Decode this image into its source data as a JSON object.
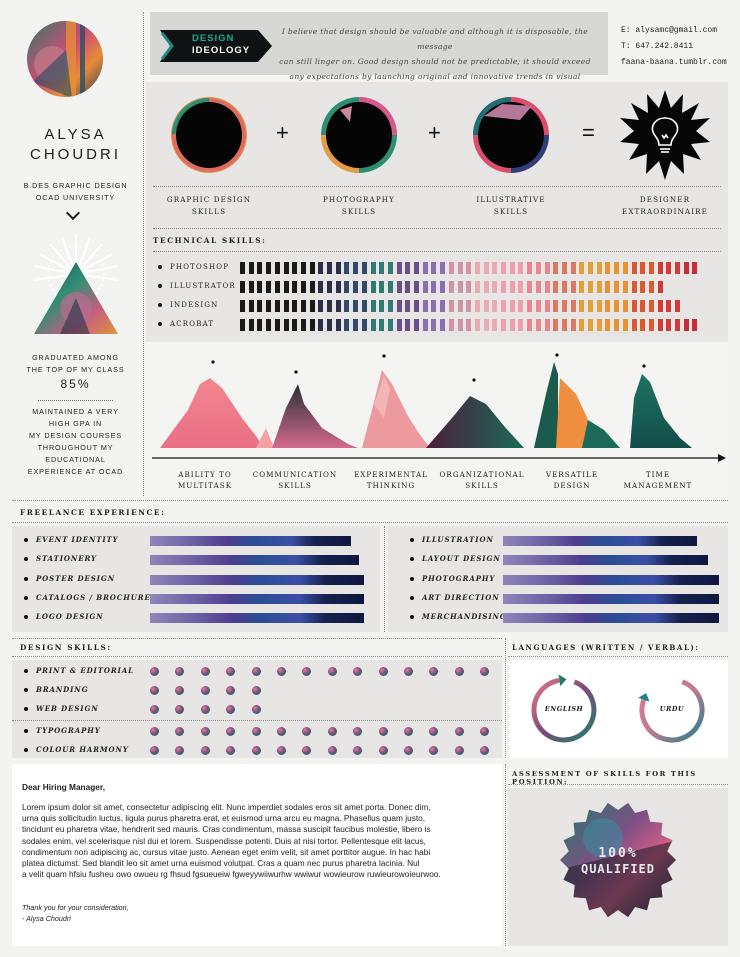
{
  "profile": {
    "first_name": "ALYSA",
    "last_name": "CHOUDRI",
    "degree_line1": "B.DES GRAPHIC DESIGN",
    "degree_line2": "OCAD UNIVERSITY",
    "graduated_line1": "GRADUATED AMONG",
    "graduated_line2": "THE TOP OF MY CLASS",
    "graduated_pct": "85%",
    "gpa_lines": [
      "MAINTAINED A VERY",
      "HIGH GPA IN",
      "MY DESIGN COURSES",
      "THROUGHOUT MY",
      "EDUCATIONAL",
      "EXPERIENCE AT OCAD"
    ]
  },
  "ideology": {
    "banner_line1": "DESIGN",
    "banner_line2": "IDEOLOGY",
    "quote_lines": [
      "I believe that design should be valuable and although it is disposable, the message",
      "can still linger on. Good design should not be predictable; it should exceed",
      "any expectations by launching original and innovative trends in visual dialogue."
    ]
  },
  "contact": {
    "email": "E: alysamc@gmail.com",
    "phone": "T: 647.242.8411",
    "site": "faana-baana.tumblr.com"
  },
  "equation": {
    "items": [
      {
        "line1": "GRAPHIC DESIGN",
        "line2": "SKILLS"
      },
      {
        "line1": "PHOTOGRAPHY",
        "line2": "SKILLS"
      },
      {
        "line1": "ILLUSTRATIVE",
        "line2": "SKILLS"
      },
      {
        "line1": "DESIGNER",
        "line2": "EXTRAORDINAIRE"
      }
    ],
    "plus": "+",
    "equals": "="
  },
  "technical": {
    "title": "TECHNICAL SKILLS:",
    "skills": [
      {
        "name": "PHOTOSHOP",
        "level": 0.98
      },
      {
        "name": "ILLUSTRATOR",
        "level": 0.91
      },
      {
        "name": "INDESIGN",
        "level": 0.95
      },
      {
        "name": "ACROBAT",
        "level": 0.98
      }
    ]
  },
  "peaks": {
    "labels": [
      {
        "line1": "ABILITY TO",
        "line2": "MULTITASK"
      },
      {
        "line1": "COMMUNICATION",
        "line2": "SKILLS"
      },
      {
        "line1": "EXPERIMENTAL",
        "line2": "THINKING"
      },
      {
        "line1": "ORGANIZATIONAL",
        "line2": "SKILLS"
      },
      {
        "line1": "VERSATILE",
        "line2": "DESIGN"
      },
      {
        "line1": "TIME",
        "line2": "MANAGEMENT"
      }
    ]
  },
  "freelance": {
    "title": "FREELANCE EXPERIENCE:",
    "left": [
      {
        "name": "EVENT IDENTITY",
        "level": 0.92
      },
      {
        "name": "STATIONERY",
        "level": 0.96
      },
      {
        "name": "POSTER DESIGN",
        "level": 0.98
      },
      {
        "name": "CATALOGS / BROCHURES",
        "level": 0.98
      },
      {
        "name": "LOGO DESIGN",
        "level": 0.98
      }
    ],
    "right": [
      {
        "name": "ILLUSTRATION",
        "level": 0.89
      },
      {
        "name": "LAYOUT DESIGN",
        "level": 0.94
      },
      {
        "name": "PHOTOGRAPHY",
        "level": 0.99
      },
      {
        "name": "ART DIRECTION",
        "level": 0.99
      },
      {
        "name": "MERCHANDISING",
        "level": 0.99
      }
    ]
  },
  "design_skills": {
    "title": "DESIGN SKILLS:",
    "skills": [
      {
        "name": "PRINT & EDITORIAL",
        "dots": 14
      },
      {
        "name": "BRANDING",
        "dots": 5
      },
      {
        "name": "WEB DESIGN",
        "dots": 5
      },
      {
        "name": "TYPOGRAPHY",
        "dots": 14
      },
      {
        "name": "COLOUR HARMONY",
        "dots": 14
      }
    ]
  },
  "languages": {
    "title": "LANGUAGES (WRITTEN / VERBAL):",
    "items": [
      {
        "name": "ENGLISH",
        "level": 0.92
      },
      {
        "name": "URDU",
        "level": 0.75
      }
    ]
  },
  "assessment": {
    "title": "ASSESSMENT OF SKILLS FOR THIS POSITION:",
    "line1": "100%",
    "line2": "QUALIFIED"
  },
  "letter": {
    "greeting": "Dear Hiring Manager,",
    "body_lines": [
      "Lorem ipsum dolor sit amet, consectetur adipiscing elit. Nunc imperdiet sodales eros sit amet porta. Donec dim,",
      " urna quis sollicitudin luctus, ligula purus pharetra erat, et euismod urna arcu eu magna. Phasellus quam justo,",
      "tincidunt eu pharetra vitae, hendrerit sed mauris. Cras condimentum, massa suscipit faucibus molestie, libero is",
      "sodales enim, vel scelerisque nisl dui et lorem. Suspendisse potenti. Duis at nisi tortor. Pellentesque elit lacus,",
      "condimentum non adipiscing ac, cursus vitae justo. Aenean eget enim velit, sit amet porttitor augue. In hac habi",
      "platea dictumst. Sed blandit leo sit amet urna euismod volutpat. Cras a quam nec purus pharetra lacinia. Nul",
      "a velit quam hfsiu fusheu owo owueu rg fhsud fgsueueiw fgweyywiiwurhw wwiwur wowieurow ruwieurowoieurwoo."
    ],
    "closing": "Thank you for your consideration,",
    "signature": "- Alysa Choudri"
  }
}
